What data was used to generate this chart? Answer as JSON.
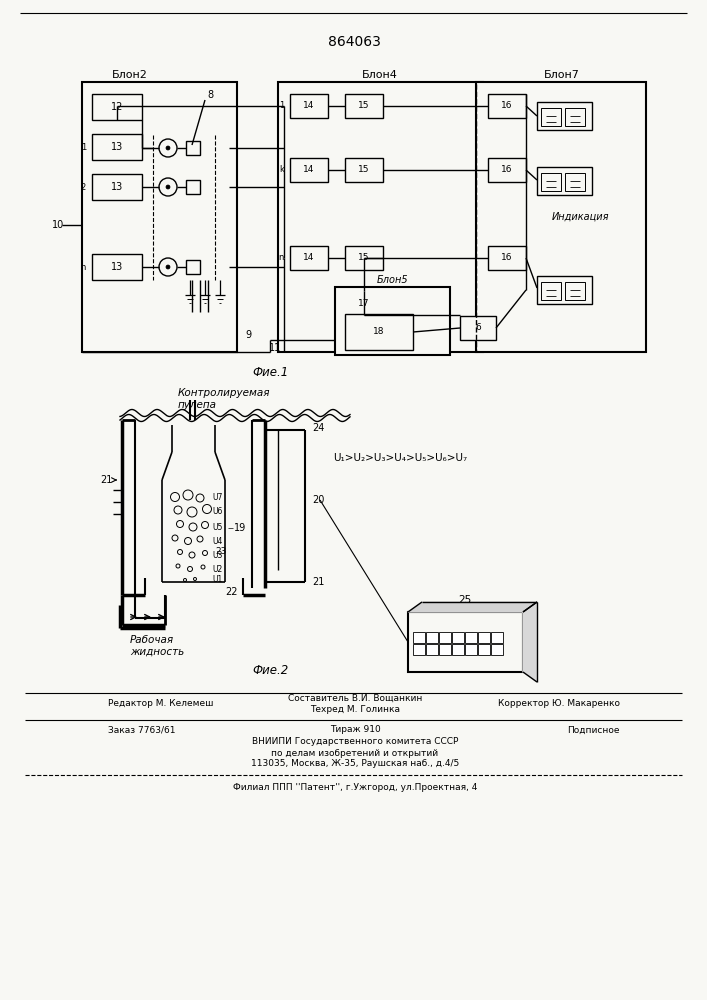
{
  "title": "864063",
  "bg": "#f8f8f4",
  "fig1_label": "Фие.1",
  "fig2_label": "Фие.2",
  "blok2_label": "Блон2",
  "blok4_label": "Блон4",
  "blok7_label": "Блон7",
  "blok5_label": "Блон5",
  "indikaciya_label": "Индикация",
  "fig2_kontrol_label": "Контролируемая",
  "fig2_pulpa_label": "пулепа",
  "fig2_rabochaya_label": "Рабочая",
  "fig2_zhidkost_label": "жидность",
  "fig2_formula": "U₁>U₂>U₃>U₄>U₅>U₆>U₇"
}
